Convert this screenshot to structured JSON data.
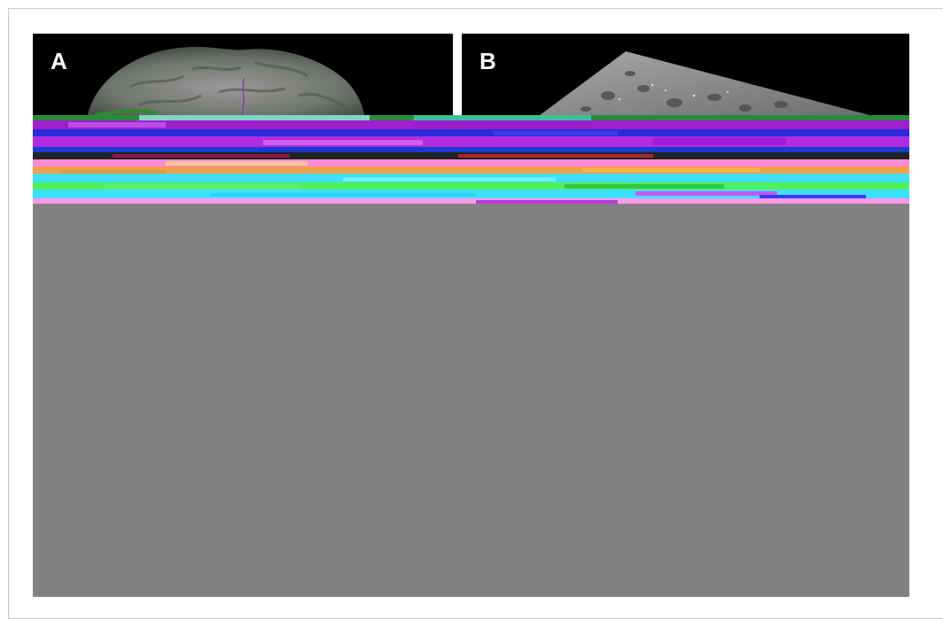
{
  "figure": {
    "panels": [
      {
        "label": "A",
        "icon": "brain-mri-render-icon"
      },
      {
        "label": "B",
        "icon": "microscopy-slice-icon"
      }
    ],
    "colors": {
      "panel_background": "#000000",
      "missing_region": "#808080",
      "frame_border": "#c9c9c9"
    }
  }
}
